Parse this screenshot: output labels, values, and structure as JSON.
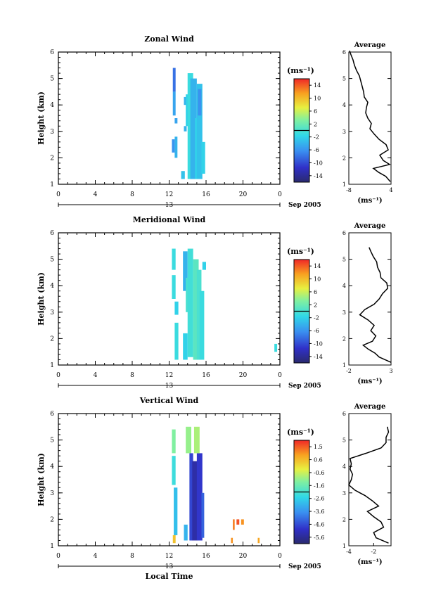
{
  "figure": {
    "date_label": "Sep 2005",
    "day_label": "13",
    "xlabel": "Local Time",
    "ylabel": "Height (km)",
    "unit_label": "(ms⁻¹)",
    "avg_title": "Average"
  },
  "chart_data": [
    {
      "type": "heatmap",
      "title": "Zonal Wind",
      "xlabel": "",
      "ylabel": "Height (km)",
      "x_ticks": [
        "0",
        "4",
        "8",
        "12",
        "16",
        "20",
        "0"
      ],
      "xlim": [
        0,
        24
      ],
      "y_ticks": [
        "1",
        "2",
        "3",
        "4",
        "5",
        "6"
      ],
      "ylim": [
        1,
        6
      ],
      "colorbar_ticks": [
        "14",
        "10",
        "6",
        "2",
        "-2",
        "-6",
        "-10",
        "-14"
      ],
      "colorbar_range": [
        -16,
        16
      ],
      "cells": [
        {
          "t": [
            12.4,
            12.7
          ],
          "h": [
            4.5,
            5.4
          ],
          "v": -8
        },
        {
          "t": [
            12.4,
            12.7
          ],
          "h": [
            3.6,
            4.5
          ],
          "v": -5
        },
        {
          "t": [
            12.6,
            12.9
          ],
          "h": [
            3.3,
            3.5
          ],
          "v": -5
        },
        {
          "t": [
            12.6,
            12.9
          ],
          "h": [
            2.0,
            2.8
          ],
          "v": -4
        },
        {
          "t": [
            12.3,
            12.6
          ],
          "h": [
            2.2,
            2.7
          ],
          "v": -6
        },
        {
          "t": [
            13.6,
            13.9
          ],
          "h": [
            4.0,
            4.3
          ],
          "v": -4
        },
        {
          "t": [
            13.6,
            13.9
          ],
          "h": [
            3.0,
            3.2
          ],
          "v": -4
        },
        {
          "t": [
            13.3,
            13.7
          ],
          "h": [
            1.2,
            1.5
          ],
          "v": -3
        },
        {
          "t": [
            13.8,
            14.3
          ],
          "h": [
            3.2,
            4.4
          ],
          "v": -2
        },
        {
          "t": [
            14.0,
            14.6
          ],
          "h": [
            1.2,
            5.2
          ],
          "v": -1
        },
        {
          "t": [
            14.3,
            15.0
          ],
          "h": [
            1.2,
            5.0
          ],
          "v": -4
        },
        {
          "t": [
            14.8,
            15.4
          ],
          "h": [
            1.2,
            3.5
          ],
          "v": -2
        },
        {
          "t": [
            15.0,
            15.6
          ],
          "h": [
            1.2,
            4.8
          ],
          "v": -3
        },
        {
          "t": [
            15.5,
            15.9
          ],
          "h": [
            1.4,
            2.6
          ],
          "v": -2
        },
        {
          "t": [
            15.1,
            15.5
          ],
          "h": [
            3.6,
            4.6
          ],
          "v": -6
        }
      ],
      "average_profile": {
        "xlim": [
          -8,
          4
        ],
        "x_ticks": [
          "-8",
          "4"
        ],
        "xlabel": "(ms⁻¹)",
        "height": [
          1.1,
          1.3,
          1.45,
          1.6,
          1.75,
          1.9,
          2.1,
          2.3,
          2.5,
          2.7,
          2.9,
          3.1,
          3.3,
          3.5,
          3.7,
          3.9,
          4.1,
          4.3,
          4.5,
          4.7,
          4.9,
          5.1,
          5.3,
          5.5,
          5.7,
          5.9,
          6.05
        ],
        "values": [
          3.8,
          2.5,
          0.5,
          -1.0,
          3.6,
          1.8,
          0.8,
          3.2,
          2.6,
          0.6,
          -0.8,
          -2.0,
          -1.6,
          -2.6,
          -3.2,
          -3.0,
          -2.6,
          -3.6,
          -3.8,
          -4.2,
          -4.6,
          -5.0,
          -5.8,
          -6.4,
          -6.8,
          -7.4,
          -7.8
        ]
      }
    },
    {
      "type": "heatmap",
      "title": "Meridional Wind",
      "xlabel": "",
      "ylabel": "Height (km)",
      "x_ticks": [
        "0",
        "4",
        "8",
        "12",
        "16",
        "20",
        "0"
      ],
      "xlim": [
        0,
        24
      ],
      "y_ticks": [
        "1",
        "2",
        "3",
        "4",
        "5",
        "6"
      ],
      "ylim": [
        1,
        6
      ],
      "colorbar_ticks": [
        "14",
        "10",
        "6",
        "2",
        "-2",
        "-6",
        "-10",
        "-14"
      ],
      "colorbar_range": [
        -16,
        16
      ],
      "cells": [
        {
          "t": [
            12.3,
            12.7
          ],
          "h": [
            4.6,
            5.4
          ],
          "v": -1
        },
        {
          "t": [
            12.3,
            12.7
          ],
          "h": [
            3.5,
            4.4
          ],
          "v": -1
        },
        {
          "t": [
            12.6,
            13.0
          ],
          "h": [
            2.9,
            3.4
          ],
          "v": -2
        },
        {
          "t": [
            12.6,
            13.0
          ],
          "h": [
            1.2,
            2.6
          ],
          "v": -1
        },
        {
          "t": [
            13.5,
            14.0
          ],
          "h": [
            3.8,
            5.3
          ],
          "v": -4
        },
        {
          "t": [
            13.5,
            14.0
          ],
          "h": [
            1.2,
            2.2
          ],
          "v": -2
        },
        {
          "t": [
            13.8,
            14.3
          ],
          "h": [
            3.0,
            4.3
          ],
          "v": 0
        },
        {
          "t": [
            14.0,
            14.6
          ],
          "h": [
            1.3,
            5.4
          ],
          "v": -0.5
        },
        {
          "t": [
            14.6,
            15.2
          ],
          "h": [
            1.2,
            5.0
          ],
          "v": 1
        },
        {
          "t": [
            15.0,
            15.5
          ],
          "h": [
            1.2,
            4.6
          ],
          "v": 0
        },
        {
          "t": [
            15.3,
            15.8
          ],
          "h": [
            1.2,
            3.8
          ],
          "v": -1
        },
        {
          "t": [
            15.6,
            16.0
          ],
          "h": [
            4.6,
            4.9
          ],
          "v": -2
        },
        {
          "t": [
            23.4,
            23.7
          ],
          "h": [
            1.5,
            1.8
          ],
          "v": -1
        }
      ],
      "average_profile": {
        "xlim": [
          -2,
          3
        ],
        "x_ticks": [
          "-2",
          "3"
        ],
        "xlabel": "(ms⁻¹)",
        "height": [
          1.1,
          1.3,
          1.45,
          1.6,
          1.75,
          1.9,
          2.1,
          2.3,
          2.5,
          2.7,
          2.9,
          3.1,
          3.3,
          3.5,
          3.7,
          3.9,
          4.1,
          4.3,
          4.5,
          4.7,
          4.9,
          5.1,
          5.3,
          5.45
        ],
        "values": [
          3.0,
          1.6,
          1.1,
          0.3,
          -0.3,
          0.8,
          1.2,
          0.6,
          1.0,
          0.3,
          -0.7,
          -0.1,
          1.0,
          1.6,
          2.0,
          2.6,
          2.5,
          1.8,
          1.7,
          1.4,
          1.3,
          0.9,
          0.6,
          0.4
        ]
      }
    },
    {
      "type": "heatmap",
      "title": "Vertical Wind",
      "xlabel": "Local Time",
      "ylabel": "Height (km)",
      "x_ticks": [
        "0",
        "4",
        "8",
        "12",
        "16",
        "20",
        "0"
      ],
      "xlim": [
        0,
        24
      ],
      "y_ticks": [
        "1",
        "2",
        "3",
        "4",
        "5",
        "6"
      ],
      "ylim": [
        1,
        6
      ],
      "colorbar_ticks": [
        "1.5",
        "0.6",
        "-0.6",
        "-1.6",
        "-2.6",
        "-3.6",
        "-4.6",
        "-5.6"
      ],
      "colorbar_range": [
        -6,
        2
      ],
      "cells": [
        {
          "t": [
            12.3,
            12.7
          ],
          "h": [
            4.5,
            5.4
          ],
          "v": -1.2
        },
        {
          "t": [
            12.3,
            12.7
          ],
          "h": [
            3.3,
            4.4
          ],
          "v": -2.2
        },
        {
          "t": [
            12.5,
            12.9
          ],
          "h": [
            1.4,
            3.2
          ],
          "v": -2.8
        },
        {
          "t": [
            12.4,
            12.7
          ],
          "h": [
            1.1,
            1.4
          ],
          "v": 0.4
        },
        {
          "t": [
            13.6,
            14.0
          ],
          "h": [
            1.2,
            1.8
          ],
          "v": -3.0
        },
        {
          "t": [
            13.8,
            14.4
          ],
          "h": [
            4.5,
            5.5
          ],
          "v": -1.0
        },
        {
          "t": [
            14.2,
            14.6
          ],
          "h": [
            1.2,
            4.5
          ],
          "v": -4.6
        },
        {
          "t": [
            14.5,
            15.1
          ],
          "h": [
            1.2,
            4.2
          ],
          "v": -5.3
        },
        {
          "t": [
            15.0,
            15.6
          ],
          "h": [
            1.2,
            4.5
          ],
          "v": -4.8
        },
        {
          "t": [
            14.7,
            15.3
          ],
          "h": [
            4.5,
            5.5
          ],
          "v": -0.8
        },
        {
          "t": [
            15.5,
            15.8
          ],
          "h": [
            1.3,
            3.0
          ],
          "v": -4.2
        },
        {
          "t": [
            18.9,
            19.1
          ],
          "h": [
            1.6,
            2.0
          ],
          "v": 1.2
        },
        {
          "t": [
            19.3,
            19.6
          ],
          "h": [
            1.8,
            2.0
          ],
          "v": 1.6
        },
        {
          "t": [
            19.8,
            20.1
          ],
          "h": [
            1.8,
            2.0
          ],
          "v": 1.0
        },
        {
          "t": [
            18.7,
            18.9
          ],
          "h": [
            1.1,
            1.3
          ],
          "v": 1.0
        },
        {
          "t": [
            21.6,
            21.8
          ],
          "h": [
            1.1,
            1.3
          ],
          "v": 0.8
        }
      ],
      "average_profile": {
        "xlim": [
          -4,
          -0.6
        ],
        "x_ticks": [
          "-4",
          "-2"
        ],
        "xlabel": "(ms⁻¹)",
        "height": [
          1.1,
          1.3,
          1.5,
          1.7,
          1.9,
          2.1,
          2.3,
          2.5,
          2.7,
          2.9,
          3.1,
          3.3,
          3.5,
          3.7,
          3.9,
          4.1,
          4.3,
          4.5,
          4.7,
          4.9,
          5.1,
          5.3,
          5.5
        ],
        "values": [
          -0.8,
          -1.8,
          -2.0,
          -1.2,
          -1.4,
          -2.0,
          -2.5,
          -1.6,
          -2.1,
          -2.7,
          -3.5,
          -4.0,
          -3.8,
          -3.7,
          -3.9,
          -3.8,
          -3.9,
          -2.6,
          -1.4,
          -1.0,
          -1.0,
          -0.8,
          -0.9
        ]
      }
    }
  ]
}
